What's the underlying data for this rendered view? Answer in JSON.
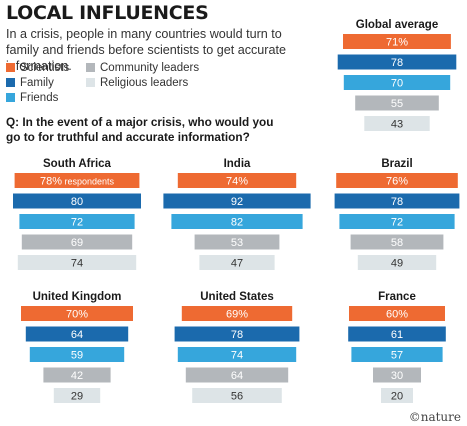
{
  "header": {
    "title": "LOCAL INFLUENCES",
    "subtitle": "In a crisis, people in many countries would turn to family and friends before scientists to get accurate information.",
    "question": "Q: In the event of a major crisis, who would you go to for truthful and accurate information?"
  },
  "footer": {
    "credit": "©nature"
  },
  "colors": {
    "Scientists": "#ee6a32",
    "Family": "#1b6aad",
    "Friends": "#36a6dc",
    "Community leaders": "#b3b7bb",
    "Religious leaders": "#dde4e7"
  },
  "chart_data": {
    "type": "bar",
    "categories": [
      "Scientists",
      "Family",
      "Friends",
      "Community leaders",
      "Religious leaders"
    ],
    "legend": [
      "Scientists",
      "Family",
      "Friends",
      "Community leaders",
      "Religious leaders"
    ],
    "value_unit": "%",
    "annotation": "respondents",
    "panels": [
      {
        "title": "Global average",
        "values": [
          71,
          78,
          70,
          55,
          43
        ]
      },
      {
        "title": "South Africa",
        "values": [
          78,
          80,
          72,
          69,
          74
        ]
      },
      {
        "title": "India",
        "values": [
          74,
          92,
          82,
          53,
          47
        ]
      },
      {
        "title": "Brazil",
        "values": [
          76,
          78,
          72,
          58,
          49
        ]
      },
      {
        "title": "United Kingdom",
        "values": [
          70,
          64,
          59,
          42,
          29
        ]
      },
      {
        "title": "United States",
        "values": [
          69,
          78,
          74,
          64,
          56
        ]
      },
      {
        "title": "France",
        "values": [
          60,
          61,
          57,
          30,
          20
        ]
      }
    ]
  }
}
